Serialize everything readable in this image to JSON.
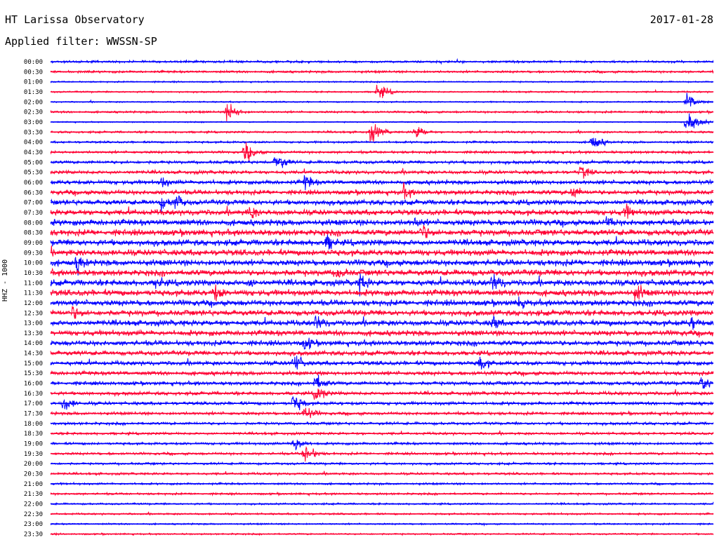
{
  "header": {
    "title": "HT Larissa Observatory",
    "date": "2017-01-28",
    "filter": "Applied filter: WWSSN-SP",
    "channel": "HHZ - 1000"
  },
  "colors": {
    "blue": "#0000ff",
    "red": "#ff0033",
    "background": "#ffffff"
  },
  "chart_data": {
    "type": "line",
    "description_type": "helicorder",
    "row_labels": [
      "00:00",
      "00:30",
      "01:00",
      "01:30",
      "02:00",
      "02:30",
      "03:00",
      "03:30",
      "04:00",
      "04:30",
      "05:00",
      "05:30",
      "06:00",
      "06:30",
      "07:00",
      "07:30",
      "08:00",
      "08:30",
      "09:00",
      "09:30",
      "10:00",
      "10:30",
      "11:00",
      "11:30",
      "12:00",
      "12:30",
      "13:00",
      "13:30",
      "14:00",
      "14:30",
      "15:00",
      "15:30",
      "16:00",
      "16:30",
      "17:00",
      "17:30",
      "18:00",
      "18:30",
      "19:00",
      "19:30",
      "20:00",
      "20:30",
      "21:00",
      "21:30",
      "22:00",
      "22:30",
      "23:00",
      "23:30"
    ],
    "row_colors": [
      "blue",
      "red"
    ],
    "noise_level": [
      1,
      1,
      0.6,
      0.7,
      0.6,
      0.9,
      0.5,
      0.9,
      0.9,
      1.1,
      1.3,
      1.5,
      1.8,
      2.0,
      2.2,
      2.4,
      2.6,
      2.6,
      2.6,
      2.6,
      2.6,
      2.6,
      2.6,
      2.6,
      2.5,
      2.4,
      2.4,
      2.3,
      2.2,
      2.0,
      1.8,
      1.7,
      1.6,
      1.5,
      1.4,
      1.3,
      1.2,
      1.1,
      1.1,
      1.1,
      1.0,
      1.0,
      0.9,
      0.9,
      0.8,
      0.8,
      0.7,
      0.7
    ],
    "events": [
      {
        "row": 7,
        "minute": 14.5,
        "amp": 12
      },
      {
        "row": 7,
        "minute": 16.5,
        "amp": 9
      },
      {
        "row": 6,
        "minute": 28.8,
        "amp": 14
      },
      {
        "row": 9,
        "minute": 8.8,
        "amp": 12
      },
      {
        "row": 10,
        "minute": 10.2,
        "amp": 12
      },
      {
        "row": 12,
        "minute": 11.5,
        "amp": 10
      },
      {
        "row": 12,
        "minute": 5.0,
        "amp": 8
      },
      {
        "row": 13,
        "minute": 23.6,
        "amp": 9
      },
      {
        "row": 14,
        "minute": 5.6,
        "amp": 12
      },
      {
        "row": 14,
        "minute": 5.0,
        "amp": 9
      },
      {
        "row": 15,
        "minute": 9.0,
        "amp": 10
      },
      {
        "row": 15,
        "minute": 26.0,
        "amp": 10
      },
      {
        "row": 16,
        "minute": 16.5,
        "amp": 8
      },
      {
        "row": 16,
        "minute": 25.2,
        "amp": 9
      },
      {
        "row": 17,
        "minute": 16.8,
        "amp": 12
      },
      {
        "row": 18,
        "minute": 12.5,
        "amp": 12
      },
      {
        "row": 20,
        "minute": 1.2,
        "amp": 12
      },
      {
        "row": 21,
        "minute": 13.0,
        "amp": 10
      },
      {
        "row": 22,
        "minute": 4.8,
        "amp": 10
      },
      {
        "row": 22,
        "minute": 9.0,
        "amp": 8
      },
      {
        "row": 22,
        "minute": 14.0,
        "amp": 12
      },
      {
        "row": 22,
        "minute": 20.0,
        "amp": 14
      },
      {
        "row": 23,
        "minute": 7.4,
        "amp": 12
      },
      {
        "row": 23,
        "minute": 26.5,
        "amp": 12
      },
      {
        "row": 24,
        "minute": 21.2,
        "amp": 10
      },
      {
        "row": 25,
        "minute": 1.0,
        "amp": 10
      },
      {
        "row": 26,
        "minute": 12.0,
        "amp": 12
      },
      {
        "row": 26,
        "minute": 20.0,
        "amp": 10
      },
      {
        "row": 26,
        "minute": 29.0,
        "amp": 10
      },
      {
        "row": 28,
        "minute": 11.5,
        "amp": 10
      },
      {
        "row": 30,
        "minute": 11.0,
        "amp": 12
      },
      {
        "row": 30,
        "minute": 19.4,
        "amp": 10
      },
      {
        "row": 32,
        "minute": 12.0,
        "amp": 12
      },
      {
        "row": 32,
        "minute": 29.4,
        "amp": 12
      },
      {
        "row": 33,
        "minute": 12.0,
        "amp": 11
      },
      {
        "row": 34,
        "minute": 0.6,
        "amp": 10
      },
      {
        "row": 34,
        "minute": 11.0,
        "amp": 12
      },
      {
        "row": 35,
        "minute": 11.5,
        "amp": 10
      },
      {
        "row": 38,
        "minute": 11.0,
        "amp": 11
      },
      {
        "row": 39,
        "minute": 11.5,
        "amp": 12
      },
      {
        "row": 11,
        "minute": 24.0,
        "amp": 9
      },
      {
        "row": 13,
        "minute": 16.0,
        "amp": 9
      },
      {
        "row": 4,
        "minute": 28.8,
        "amp": 10
      },
      {
        "row": 5,
        "minute": 8.0,
        "amp": 12
      },
      {
        "row": 8,
        "minute": 24.5,
        "amp": 10
      },
      {
        "row": 3,
        "minute": 14.8,
        "amp": 10
      }
    ]
  }
}
